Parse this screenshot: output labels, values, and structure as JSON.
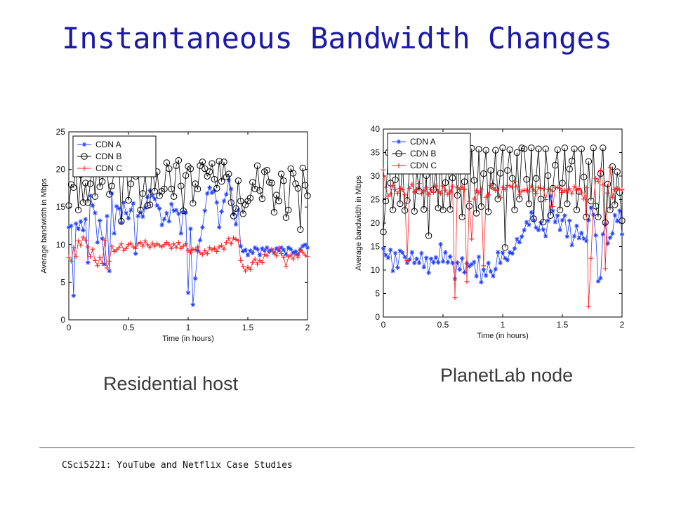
{
  "slide": {
    "title": "Instantaneous Bandwidth Changes",
    "footer": "CSci5221:   YouTube and Netflix Case Studies"
  },
  "colors": {
    "title": "#1a1aa6",
    "cdn_a": "#1f3fff",
    "cdn_b": "#000000",
    "cdn_c": "#ff1f1f"
  },
  "chart_data": [
    {
      "type": "line",
      "caption": "Residential host",
      "xlabel": "Time (in hours)",
      "ylabel": "Average bandwidth in Mbps",
      "xlim": [
        0,
        2
      ],
      "ylim": [
        0,
        25
      ],
      "xticks": [
        "0",
        "0.5",
        "1",
        "1.5",
        "2"
      ],
      "yticks": [
        "0",
        "5",
        "10",
        "15",
        "20",
        "25"
      ],
      "legend_position": "top-left",
      "grid": false,
      "x_start": 0.0,
      "x_step": 0.02,
      "series": [
        {
          "name": "CDN A",
          "marker": "star",
          "values": [
            12.3,
            12.5,
            3.2,
            12.8,
            12.1,
            13.1,
            11.9,
            13.4,
            7.6,
            16.5,
            15.2,
            14.2,
            10.3,
            13.2,
            10.8,
            7.4,
            13.8,
            6.5,
            16.8,
            11.5,
            15.1,
            14.8,
            12.9,
            15.6,
            14.2,
            13.5,
            14.6,
            15.5,
            8.8,
            13.8,
            14.3,
            13.7,
            14.9,
            16.3,
            17.2,
            16.5,
            16.1,
            15.2,
            14.8,
            12.6,
            13.4,
            14.2,
            13.1,
            15.4,
            14.5,
            14.6,
            14.1,
            11.5,
            14.4,
            14.2,
            3.6,
            12.1,
            2.0,
            5.5,
            9.2,
            10.6,
            12.3,
            14.5,
            16.8,
            17.6,
            16.9,
            17.2,
            15.6,
            12.3,
            14.4,
            15.8,
            16.7,
            18.6,
            17.4,
            14.1,
            12.7,
            14.6,
            9.8,
            9.1,
            9.3,
            8.6,
            9.2,
            8.9,
            9.6,
            9.4,
            8.6,
            9.5,
            9.2,
            9.6,
            9.1,
            9.3,
            8.9,
            9.5,
            9.2,
            9.6,
            9.3,
            8.7,
            9.6,
            9.4,
            8.9,
            9.1,
            8.7,
            9.4,
            9.8,
            10.0,
            9.6
          ]
        },
        {
          "name": "CDN B",
          "marker": "circle",
          "values": [
            15.2,
            18.0,
            17.6,
            20.2,
            14.6,
            19.3,
            15.6,
            18.2,
            15.6,
            18.1,
            20.5,
            16.4,
            21.8,
            17.7,
            18.4,
            21.4,
            19.8,
            16.7,
            17.8,
            19.6,
            20.2,
            21.1,
            13.1,
            20.1,
            21.1,
            15.9,
            18.1,
            20.5,
            19.1,
            20.6,
            14.6,
            16.8,
            19.5,
            15.2,
            15.3,
            21.4,
            17.1,
            19.7,
            16.5,
            17.1,
            17.4,
            20.9,
            20.1,
            17.4,
            16.4,
            20.5,
            21.2,
            17.8,
            14.5,
            19.2,
            20.4,
            20.1,
            15.5,
            18.1,
            17.4,
            20.5,
            21.0,
            20.1,
            19.1,
            19.7,
            20.8,
            18.7,
            17.5,
            21.1,
            18.4,
            21.0,
            19.0,
            19.4,
            15.6,
            13.8,
            14.8,
            18.5,
            15.8,
            14.1,
            15.3,
            15.8,
            16.2,
            18.3,
            17.4,
            20.5,
            17.2,
            16.1,
            19.7,
            19.9,
            18.3,
            18.2,
            14.3,
            16.6,
            15.8,
            19.4,
            18.5,
            13.6,
            14.6,
            20.1,
            19.5,
            18.1,
            17.5,
            12.0,
            20.2,
            17.9,
            16.5
          ]
        },
        {
          "name": "CDN C",
          "marker": "plus",
          "values": [
            8.3,
            7.8,
            9.6,
            8.4,
            10.5,
            9.9,
            11.0,
            10.6,
            9.7,
            8.4,
            9.4,
            7.9,
            7.2,
            8.3,
            7.5,
            10.6,
            6.9,
            7.8,
            9.8,
            9.1,
            9.3,
            9.6,
            10.1,
            9.2,
            9.5,
            10.0,
            10.2,
            9.7,
            9.5,
            10.1,
            10.3,
            9.8,
            10.5,
            10.0,
            9.6,
            10.2,
            9.8,
            10.1,
            9.9,
            9.7,
            10.0,
            10.3,
            10.0,
            9.5,
            10.1,
            9.6,
            10.3,
            9.5,
            9.8,
            10.1,
            9.2,
            9.0,
            9.4,
            9.3,
            9.7,
            8.9,
            8.7,
            9.2,
            8.8,
            9.6,
            9.3,
            9.5,
            9.1,
            9.7,
            9.9,
            9.4,
            10.3,
            10.8,
            10.1,
            10.9,
            10.7,
            10.5,
            7.9,
            7.1,
            6.5,
            7.0,
            6.7,
            7.6,
            8.1,
            7.4,
            7.9,
            7.6,
            8.7,
            8.5,
            9.1,
            9.4,
            8.9,
            8.5,
            9.6,
            8.8,
            8.3,
            7.1,
            8.4,
            8.6,
            8.1,
            8.8,
            8.3,
            9.2,
            9.0,
            8.6,
            8.4
          ]
        }
      ]
    },
    {
      "type": "line",
      "caption": "PlanetLab node",
      "xlabel": "Time (in hours)",
      "ylabel": "Average bandwidth in Mbps",
      "xlim": [
        0,
        2
      ],
      "ylim": [
        0,
        40
      ],
      "xticks": [
        "0",
        "0.5",
        "1",
        "1.5",
        "2"
      ],
      "yticks": [
        "0",
        "5",
        "10",
        "15",
        "20",
        "25",
        "30",
        "35",
        "40"
      ],
      "legend_position": "top-left",
      "grid": false,
      "x_start": 0.0,
      "x_step": 0.02,
      "series": [
        {
          "name": "CDN A",
          "marker": "star",
          "values": [
            14.6,
            13.2,
            12.6,
            14.3,
            9.8,
            13.6,
            10.5,
            14.1,
            13.7,
            12.8,
            11.5,
            12.2,
            13.8,
            11.5,
            12.4,
            11.5,
            13.6,
            10.6,
            12.6,
            9.4,
            12.4,
            11.6,
            12.7,
            11.6,
            15.5,
            11.8,
            13.8,
            11.6,
            12.9,
            11.5,
            8.1,
            11.6,
            10.1,
            12.5,
            9.5,
            11.4,
            10.8,
            11.2,
            11.7,
            8.7,
            12.8,
            7.4,
            10.1,
            8.8,
            11.5,
            9.7,
            8.7,
            10.2,
            13.8,
            11.5,
            13.7,
            12.5,
            12.1,
            13.8,
            13.5,
            14.6,
            16.6,
            15.9,
            17.1,
            18.5,
            20.2,
            19.6,
            22.3,
            20.6,
            19.0,
            18.5,
            20.1,
            18.6,
            17.2,
            20.5,
            25.7,
            22.6,
            20.2,
            21.6,
            18.5,
            20.6,
            21.6,
            17.1,
            20.5,
            15.3,
            17.2,
            19.4,
            16.8,
            17.9,
            16.7,
            16.2,
            20.6,
            23.3,
            21.8,
            17.4,
            7.6,
            8.3,
            17.6,
            19.8,
            15.6,
            16.9,
            17.8,
            21.7,
            20.4,
            22.6,
            17.6
          ]
        },
        {
          "name": "CDN B",
          "marker": "circle",
          "values": [
            18.1,
            24.7,
            35.0,
            28.5,
            22.8,
            29.2,
            35.1,
            24.1,
            33.1,
            22.7,
            24.8,
            31.5,
            34.8,
            22.5,
            31.2,
            26.8,
            35.5,
            22.9,
            30.1,
            17.3,
            34.9,
            27.1,
            31.2,
            23.2,
            36.0,
            22.8,
            28.6,
            34.6,
            22.9,
            29.6,
            35.4,
            25.9,
            33.5,
            21.3,
            28.8,
            34.2,
            23.6,
            35.9,
            29.1,
            22.1,
            35.7,
            23.5,
            30.5,
            35.5,
            22.4,
            31.2,
            27.8,
            35.5,
            25.1,
            30.6,
            36.0,
            14.8,
            31.2,
            35.6,
            29.5,
            22.8,
            35.0,
            25.1,
            36.0,
            35.8,
            29.3,
            24.1,
            36.0,
            20.9,
            29.5,
            35.8,
            25.1,
            20.2,
            35.8,
            30.1,
            21.6,
            27.4,
            32.3,
            35.6,
            22.8,
            28.5,
            36.0,
            24.1,
            31.5,
            33.2,
            35.8,
            22.8,
            26.7,
            35.8,
            29.8,
            21.3,
            33.1,
            24.7,
            36.0,
            23.6,
            21.3,
            30.5,
            36.0,
            20.1,
            28.3,
            22.8,
            32.0,
            23.9,
            30.9,
            26.5,
            20.5
          ]
        },
        {
          "name": "CDN C",
          "marker": "plus",
          "values": [
            31.3,
            27.6,
            25.7,
            26.2,
            28.0,
            27.1,
            26.3,
            27.4,
            27.1,
            26.0,
            12.0,
            27.4,
            28.3,
            26.6,
            27.1,
            28.4,
            26.2,
            26.8,
            27.5,
            26.1,
            27.1,
            26.5,
            27.9,
            26.8,
            26.3,
            27.9,
            27.0,
            26.1,
            26.6,
            27.8,
            4.1,
            27.5,
            27.1,
            27.7,
            27.1,
            7.5,
            24.6,
            16.6,
            25.1,
            26.9,
            26.4,
            27.2,
            10.9,
            25.5,
            26.0,
            28.0,
            27.5,
            26.9,
            27.2,
            25.4,
            27.6,
            27.1,
            28.0,
            27.9,
            27.6,
            28.9,
            27.7,
            26.0,
            26.8,
            27.0,
            26.9,
            26.8,
            27.9,
            27.1,
            26.3,
            27.6,
            27.3,
            27.4,
            25.0,
            27.1,
            27.2,
            23.5,
            27.5,
            27.6,
            27.4,
            26.5,
            27.0,
            26.6,
            27.3,
            26.2,
            27.8,
            27.0,
            27.4,
            26.4,
            25.1,
            27.5,
            2.3,
            12.5,
            24.1,
            29.5,
            28.8,
            31.2,
            28.1,
            10.3,
            26.4,
            31.8,
            25.5,
            27.1,
            27.4,
            27.0,
            27.1
          ]
        }
      ]
    }
  ]
}
